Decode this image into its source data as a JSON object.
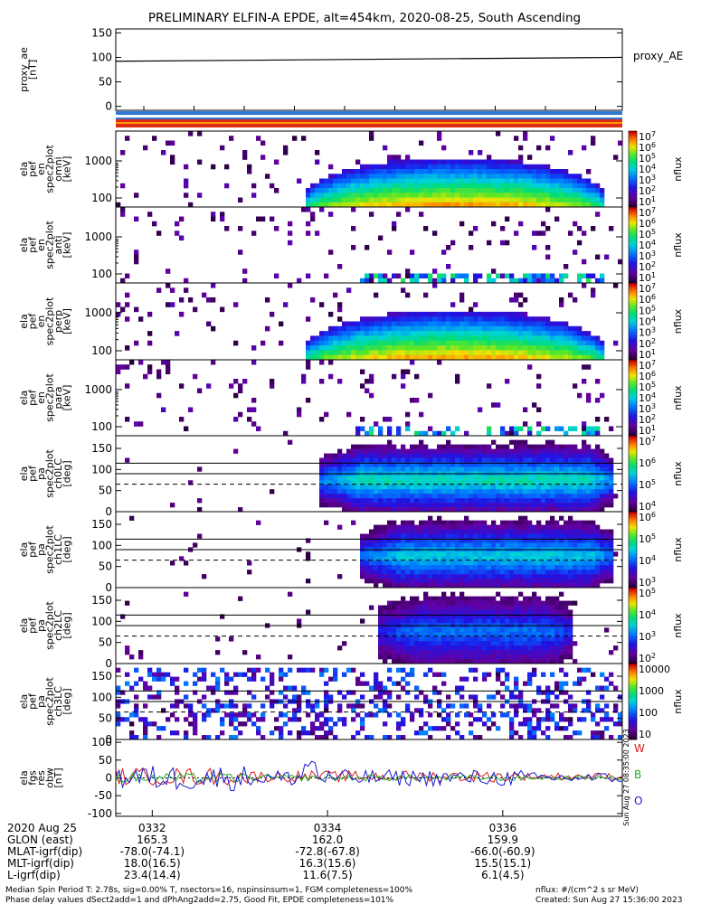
{
  "title": "PRELIMINARY ELFIN-A EPDE, alt=454km, 2020-08-25, South Ascending",
  "colors": {
    "ae_line": "#000000",
    "bar_blue": "#2f78d6",
    "bar_red": "#e02a16",
    "bar_orange": "#ff9a00",
    "line_W": "#d81c1c",
    "line_B": "#20b020",
    "line_O": "#1a1ad0"
  },
  "chart_data": [
    {
      "type": "line",
      "id": "proxy_ae",
      "ylabel_lines": [
        "proxy_ae",
        "[nT]"
      ],
      "yticks": [
        "150",
        "100",
        "50",
        "0"
      ],
      "ylim": [
        -8,
        158
      ],
      "legend": "proxy_AE",
      "x": [
        0,
        1
      ],
      "values": [
        92,
        100
      ]
    },
    {
      "type": "heatmap",
      "id": "pef_spec_0",
      "ylabel_lines": [
        "ela",
        "pef",
        "en",
        "spec2plot",
        "omni",
        "[keV]"
      ],
      "yticks": [
        "1000",
        "100"
      ],
      "scale": "log",
      "zlabel": "nflux",
      "zticks": [
        "10^7",
        "10^6",
        "10^5",
        "10^4",
        "10^3",
        "10^2",
        "10^1"
      ],
      "signal_start": 0.37,
      "signal_end": 0.96,
      "signal_strength": 1.0
    },
    {
      "type": "heatmap",
      "id": "pef_spec_1",
      "ylabel_lines": [
        "ela",
        "pef",
        "en",
        "spec2plot",
        "anti",
        "[keV]"
      ],
      "yticks": [
        "1000",
        "100"
      ],
      "scale": "log",
      "zlabel": "nflux",
      "zticks": [
        "10^7",
        "10^6",
        "10^5",
        "10^4",
        "10^3",
        "10^2",
        "10^1"
      ],
      "signal_start": 0.47,
      "signal_end": 0.96,
      "signal_strength": 0.45
    },
    {
      "type": "heatmap",
      "id": "pef_spec_2",
      "ylabel_lines": [
        "ela",
        "pef",
        "en",
        "spec2plot",
        "perp",
        "[keV]"
      ],
      "yticks": [
        "1000",
        "100"
      ],
      "scale": "log",
      "zlabel": "nflux",
      "zticks": [
        "10^7",
        "10^6",
        "10^5",
        "10^4",
        "10^3",
        "10^2",
        "10^1"
      ],
      "signal_start": 0.37,
      "signal_end": 0.96,
      "signal_strength": 1.0
    },
    {
      "type": "heatmap",
      "id": "pef_spec_3",
      "ylabel_lines": [
        "ela",
        "pef",
        "en",
        "spec2plot",
        "para",
        "[keV]"
      ],
      "yticks": [
        "1000",
        "100"
      ],
      "scale": "log",
      "zlabel": "nflux",
      "zticks": [
        "10^7",
        "10^6",
        "10^5",
        "10^4",
        "10^3",
        "10^2",
        "10^1"
      ],
      "signal_start": 0.47,
      "signal_end": 0.96,
      "signal_strength": 0.4
    },
    {
      "type": "heatmap",
      "id": "pef_pa_ch0",
      "ylabel_lines": [
        "ela",
        "pef",
        "pa",
        "spec2plot",
        "ch0LC",
        "[deg]"
      ],
      "yticks": [
        "150",
        "100",
        "50",
        "0"
      ],
      "ylim": [
        0,
        180
      ],
      "zlabel": "nflux",
      "zticks": [
        "10^7",
        "10^6",
        "10^5",
        "10^4"
      ],
      "signal_start": 0.4,
      "signal_end": 0.98,
      "signal_strength": 0.85
    },
    {
      "type": "heatmap",
      "id": "pef_pa_ch1",
      "ylabel_lines": [
        "ela",
        "pef",
        "pa",
        "spec2plot",
        "ch1LC",
        "[deg]"
      ],
      "yticks": [
        "150",
        "100",
        "50",
        "0"
      ],
      "ylim": [
        0,
        180
      ],
      "zlabel": "nflux",
      "zticks": [
        "10^6",
        "10^5",
        "10^4",
        "10^3"
      ],
      "signal_start": 0.48,
      "signal_end": 0.98,
      "signal_strength": 0.75
    },
    {
      "type": "heatmap",
      "id": "pef_pa_ch2",
      "ylabel_lines": [
        "ela",
        "pef",
        "pa",
        "spec2plot",
        "ch2LC",
        "[deg]"
      ],
      "yticks": [
        "150",
        "100",
        "50",
        "0"
      ],
      "ylim": [
        0,
        180
      ],
      "zlabel": "nflux",
      "zticks": [
        "10^5",
        "10^4",
        "10^3",
        "10^2"
      ],
      "signal_start": 0.51,
      "signal_end": 0.9,
      "signal_strength": 0.55
    },
    {
      "type": "heatmap",
      "id": "pef_pa_ch3",
      "ylabel_lines": [
        "ela",
        "pef",
        "pa",
        "spec2plot",
        "ch3LC",
        "[deg]"
      ],
      "yticks": [
        "150",
        "100",
        "50",
        "0"
      ],
      "ylim": [
        0,
        180
      ],
      "zlabel": "nflux",
      "zticks": [
        "10000",
        "1000",
        "100",
        "10"
      ],
      "signal_start": 0.0,
      "signal_end": 1.0,
      "signal_strength": 0.2
    },
    {
      "type": "line",
      "id": "fgs_res",
      "ylabel_lines": [
        "ela",
        "fgs",
        "res",
        "obw",
        "[nT]"
      ],
      "yticks": [
        "100",
        "50",
        "0",
        "-50",
        "-100"
      ],
      "ylim": [
        -108,
        108
      ],
      "series": [
        {
          "name": "W",
          "color_key": "line_W"
        },
        {
          "name": "B",
          "color_key": "line_B"
        },
        {
          "name": "O",
          "color_key": "line_O"
        }
      ]
    }
  ],
  "time_axis": {
    "labels": [
      "0332",
      "0334",
      "0336"
    ],
    "positions": [
      0.072,
      0.418,
      0.764
    ]
  },
  "footer_table": {
    "rows": [
      {
        "label": "2020 Aug 25",
        "values": [
          "0332",
          "0334",
          "0336"
        ]
      },
      {
        "label": "GLON (east)",
        "values": [
          "165.3",
          "162.0",
          "159.9"
        ]
      },
      {
        "label": "MLAT-igrf(dip)",
        "values": [
          "-78.0(-74.1)",
          "-72.8(-67.8)",
          "-66.0(-60.9)"
        ]
      },
      {
        "label": "MLT-igrf(dip)",
        "values": [
          "18.0(16.5)",
          "16.3(15.6)",
          "15.5(15.1)"
        ]
      },
      {
        "label": "L-igrf(dip)",
        "values": [
          "23.4(14.4)",
          "11.6(7.5)",
          "6.1(4.5)"
        ]
      }
    ]
  },
  "notes": {
    "line1": "Median Spin Period T: 2.78s, sig=0.00% T, nsectors=16, nspinsinsum=1, FGM completeness=100%",
    "line2": "Phase delay values dSect2add=1 and dPhAng2add=2.75, Good Fit, EPDE completeness=101%",
    "flux_units": "nflux: #/(cm^2 s sr MeV)",
    "created": "Created: Sun Aug 27 15:36:00 2023",
    "side_stamp": "Sun Aug 27 08:35:00 2023"
  }
}
